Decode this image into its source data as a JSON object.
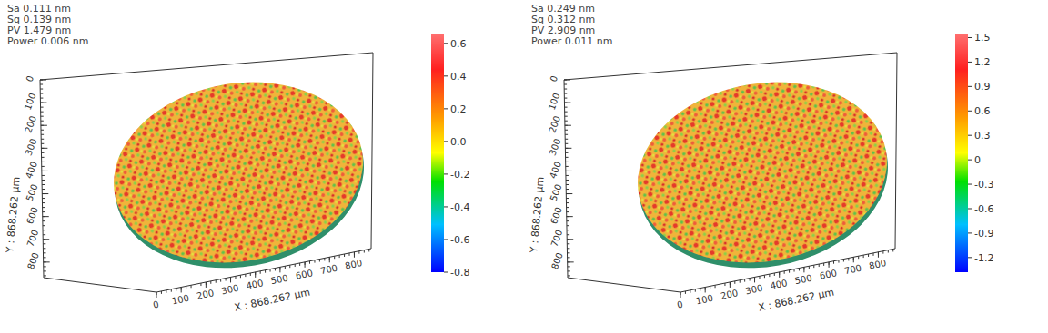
{
  "chart_data": [
    {
      "type": "surface",
      "annotations": [
        "Sa 0.111 nm",
        "Sq 0.139 nm",
        "PV 1.479 nm",
        "Power 0.006 nm"
      ],
      "xlabel": "X : 868.262 μm",
      "ylabel": "Y : 868.262 μm",
      "xlim": [
        0,
        868.262
      ],
      "ylim": [
        0,
        868.262
      ],
      "xticks": [
        0,
        100,
        200,
        300,
        400,
        500,
        600,
        700,
        800
      ],
      "yticks": [
        0,
        100,
        200,
        300,
        400,
        500,
        600,
        700,
        800
      ],
      "colorbar": {
        "range": [
          -0.8,
          0.66
        ],
        "ticks": [
          0.6,
          0.4,
          0.2,
          {
            "value": 0,
            "label": "0.0"
          },
          -0.2,
          -0.4,
          -0.6,
          -0.8
        ]
      }
    },
    {
      "type": "surface",
      "annotations": [
        "Sa 0.249 nm",
        "Sq 0.312 nm",
        "PV 2.909 nm",
        "Power 0.011 nm"
      ],
      "xlabel": "X : 868.262 μm",
      "ylabel": "Y : 868.262 μm",
      "xlim": [
        0,
        868.262
      ],
      "ylim": [
        0,
        868.262
      ],
      "xticks": [
        0,
        100,
        200,
        300,
        400,
        500,
        600,
        700,
        800
      ],
      "yticks": [
        0,
        100,
        200,
        300,
        400,
        500,
        600,
        700,
        800
      ],
      "colorbar": {
        "range": [
          -1.38,
          1.55
        ],
        "ticks": [
          1.5,
          1.2,
          0.9,
          0.6,
          0.3,
          0,
          -0.3,
          -0.6,
          -0.9,
          -1.2
        ]
      }
    }
  ]
}
